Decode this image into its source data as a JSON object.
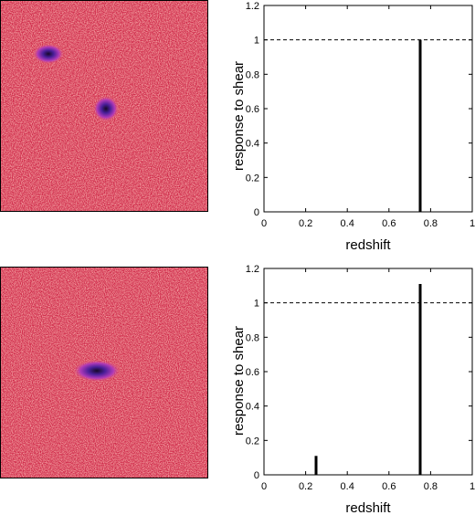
{
  "images": [
    {
      "noise_color_low": "#cc2244",
      "noise_color_high": "#f8c0a0",
      "blob_colors": [
        "#e85a74",
        "#b03ab8",
        "#4a1f9a",
        "#150828"
      ],
      "description_icon": "galaxy-image-icon"
    },
    {
      "noise_color_low": "#cc2244",
      "noise_color_high": "#f8c0a0",
      "blob_colors": [
        "#e85a74",
        "#b03ab8",
        "#4a1f9a",
        "#150828"
      ],
      "description_icon": "galaxy-image-icon"
    }
  ],
  "chart_data": [
    {
      "type": "bar",
      "xlabel": "redshift",
      "ylabel": "response to shear",
      "xlim": [
        0,
        1
      ],
      "ylim": [
        0,
        1.2
      ],
      "xticks": [
        "0",
        "0.2",
        "0.4",
        "0.6",
        "0.8",
        "1"
      ],
      "yticks": [
        "0",
        "0.2",
        "0.4",
        "0.6",
        "0.8",
        "1",
        "1.2"
      ],
      "reference_line": 1.0,
      "points": [
        {
          "x": 0.75,
          "y": 1.0
        }
      ]
    },
    {
      "type": "bar",
      "xlabel": "redshift",
      "ylabel": "response to shear",
      "xlim": [
        0,
        1
      ],
      "ylim": [
        0,
        1.2
      ],
      "xticks": [
        "0",
        "0.2",
        "0.4",
        "0.6",
        "0.8",
        "1"
      ],
      "yticks": [
        "0",
        "0.2",
        "0.4",
        "0.6",
        "0.8",
        "1",
        "1.2"
      ],
      "reference_line": 1.0,
      "points": [
        {
          "x": 0.25,
          "y": 0.11
        },
        {
          "x": 0.75,
          "y": 1.11
        }
      ]
    }
  ]
}
